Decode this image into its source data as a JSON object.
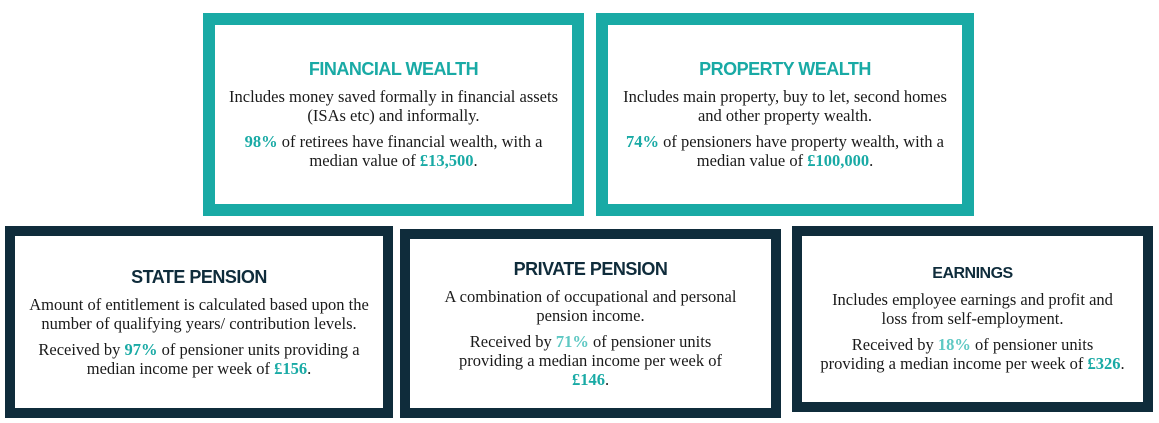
{
  "cards": [
    {
      "title": "FINANCIAL WEALTH",
      "description": "Includes money saved formally in financial assets (ISAs etc) and informally.",
      "percent": "98%",
      "stat_text": " of retirees have financial wealth, with a median value of ",
      "amount": "£13,500",
      "stat_end": ".",
      "border_color": "#19aaa5",
      "title_color": "#19aaa5",
      "percent_color": "#19aaa5"
    },
    {
      "title": "PROPERTY WEALTH",
      "description": "Includes main property, buy to let, second homes and other property wealth.",
      "percent": "74%",
      "stat_text": " of pensioners have property wealth, with a median value of ",
      "amount": "£100,000",
      "stat_end": ".",
      "border_color": "#19aaa5",
      "title_color": "#19aaa5",
      "percent_color": "#19aaa5"
    },
    {
      "title": "STATE PENSION",
      "description": "Amount of entitlement is calculated based upon the number of qualifying years/ contribution levels.",
      "stat_lead": "Received by ",
      "percent": "97%",
      "stat_text": " of pensioner units providing a median income per week of ",
      "amount": "£156",
      "stat_end": ".",
      "border_color": "#0f2c3b",
      "title_color": "#0f2c3b",
      "percent_color": "#19aaa5"
    },
    {
      "title": "PRIVATE PENSION",
      "description": "A combination of occupational and personal pension income.",
      "stat_lead": "Received by ",
      "percent": "71%",
      "stat_text": " of pensioner units providing a median income per week of ",
      "amount": "£146",
      "stat_end": ".",
      "border_color": "#0f2c3b",
      "title_color": "#0f2c3b",
      "percent_color": "#5ec8c3"
    },
    {
      "title": "EARNINGS",
      "description": "Includes employee earnings and profit and loss from self-employment.",
      "stat_lead": "Received by ",
      "percent": "18%",
      "stat_text": " of pensioner units providing a median income per week of ",
      "amount": "£326",
      "stat_end": ".",
      "border_color": "#0f2c3b",
      "title_color": "#0f2c3b",
      "percent_color": "#5ec8c3"
    }
  ]
}
